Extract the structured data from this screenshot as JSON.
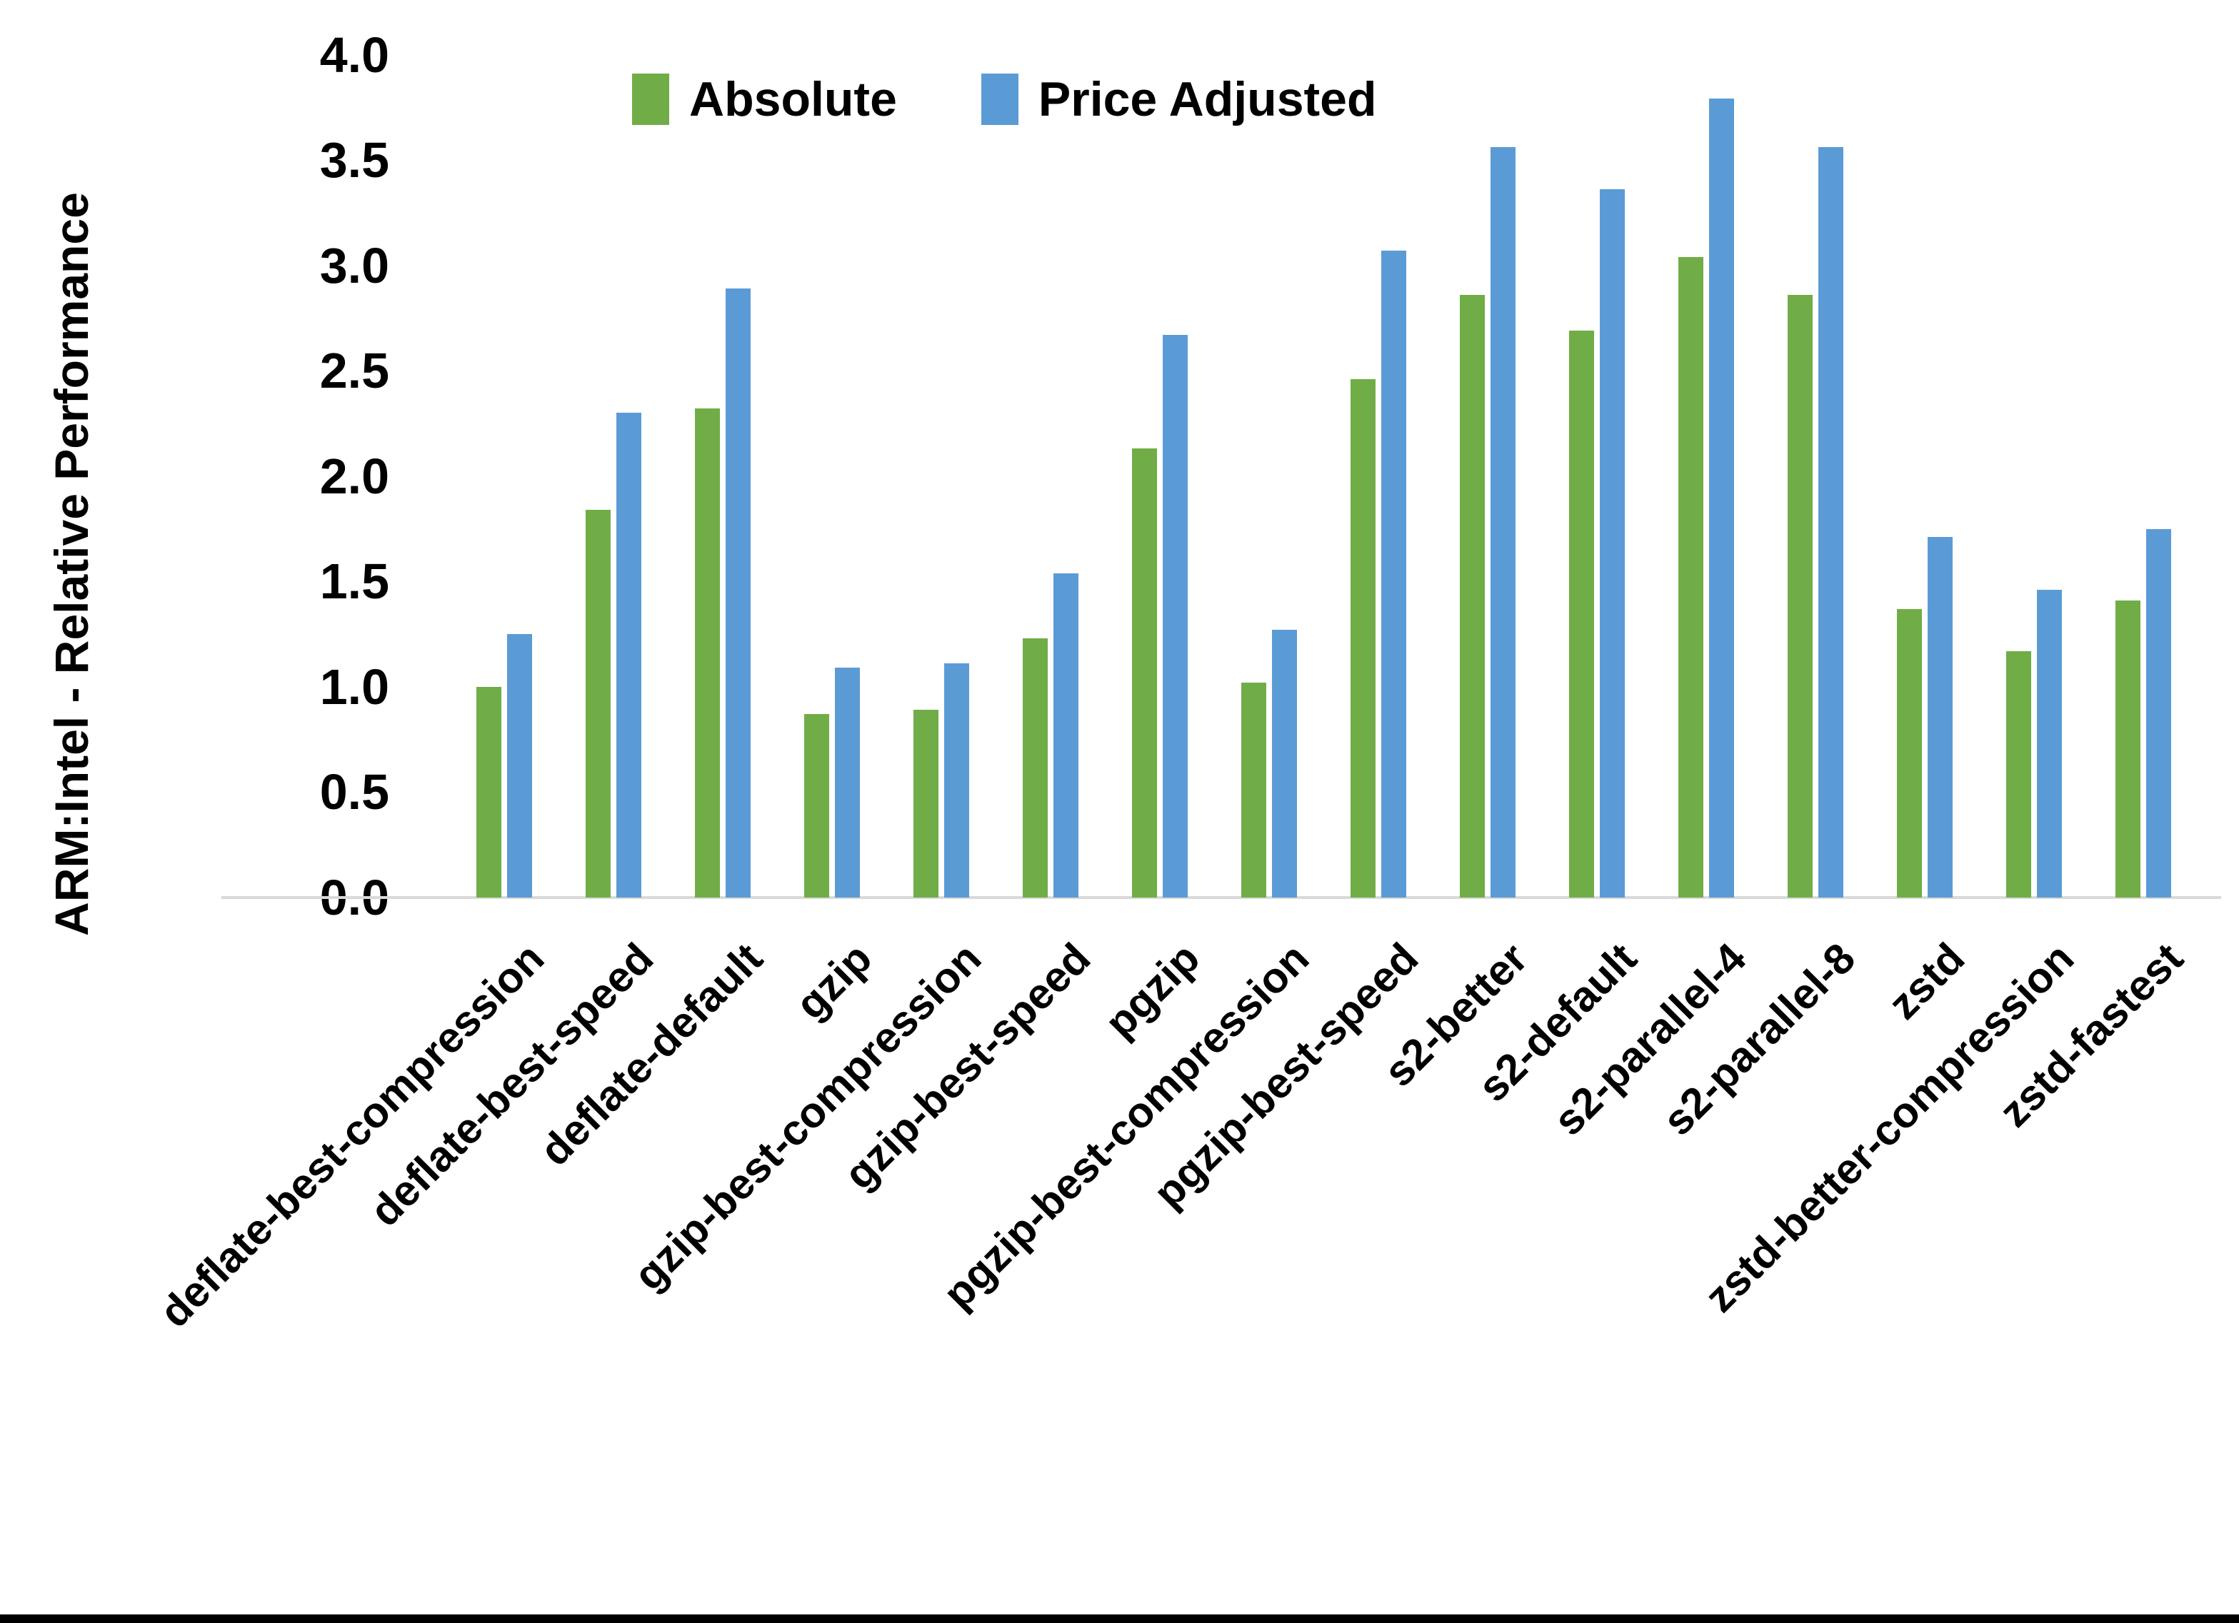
{
  "chart_data": {
    "type": "bar",
    "title": "",
    "ylabel": "ARM:Intel - Relative Performance",
    "xlabel": "",
    "ylim": [
      0.0,
      4.0
    ],
    "ytick_step": 0.5,
    "yticks": [
      "0.0",
      "0.5",
      "1.0",
      "1.5",
      "2.0",
      "2.5",
      "3.0",
      "3.5",
      "4.0"
    ],
    "grid": false,
    "legend_position": "top-center",
    "categories": [
      "deflate-best-compression",
      "deflate-best-speed",
      "deflate-default",
      "gzip",
      "gzip-best-compression",
      "gzip-best-speed",
      "pgzip",
      "pgzip-best-compression",
      "pgzip-best-speed",
      "s2-better",
      "s2-default",
      "s2-parallel-4",
      "s2-parallel-8",
      "zstd",
      "zstd-better-compression",
      "zstd-fastest"
    ],
    "series": [
      {
        "name": "Absolute",
        "color": "#70AD47",
        "values": [
          1.0,
          1.84,
          2.32,
          0.87,
          0.89,
          1.23,
          2.13,
          1.02,
          2.46,
          2.86,
          2.69,
          3.04,
          2.86,
          1.37,
          1.17,
          1.41
        ]
      },
      {
        "name": "Price Adjusted",
        "color": "#5B9BD5",
        "values": [
          1.25,
          2.3,
          2.89,
          1.09,
          1.11,
          1.54,
          2.67,
          1.27,
          3.07,
          3.56,
          3.36,
          3.79,
          3.56,
          1.71,
          1.46,
          1.75
        ]
      }
    ],
    "axis_line_color": "#D9D9D9",
    "text_color": "#000000"
  },
  "frame": {
    "bottom_bar_color": "#000000"
  }
}
